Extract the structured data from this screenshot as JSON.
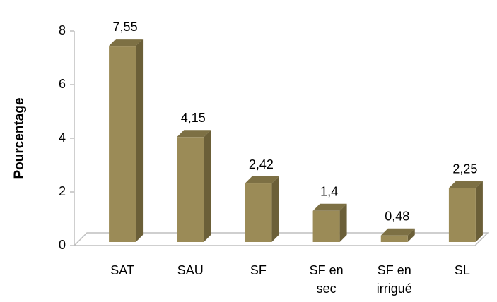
{
  "chart_data": {
    "type": "bar3d",
    "y_label": "Pourcentage",
    "categories": [
      "SAT",
      "SAU",
      "SF",
      "SF en sec",
      "SF en irrigué",
      "SL"
    ],
    "values": [
      7.55,
      4.15,
      2.42,
      1.4,
      0.48,
      2.25
    ],
    "value_labels": [
      "7,55",
      "4,15",
      "2,42",
      "1,4",
      "0,48",
      "2,25"
    ],
    "color": "#9b8b57",
    "ylim": [
      0,
      8
    ],
    "yticks": [
      0,
      2,
      4,
      6,
      8
    ],
    "grid": false
  }
}
